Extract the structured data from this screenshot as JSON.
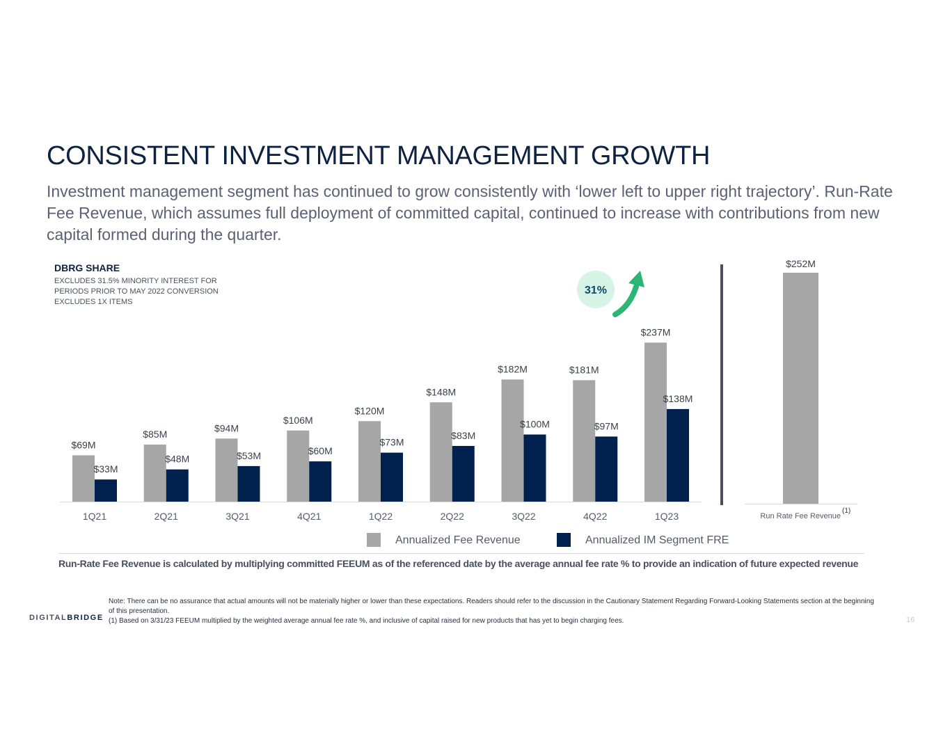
{
  "header": {
    "title": "CONSISTENT INVESTMENT MANAGEMENT GROWTH",
    "subtitle": "Investment management segment has continued to grow consistently with ‘lower left to upper right trajectory’. Run-Rate Fee Revenue, which assumes full deployment of committed capital, continued to increase with contributions from new capital formed during the quarter."
  },
  "share_box": {
    "title": "DBRG SHARE",
    "lines": [
      "EXCLUDES 31.5% MINORITY INTEREST FOR",
      "PERIODS PRIOR TO MAY 2022 CONVERSION",
      "EXCLUDES 1X ITEMS"
    ]
  },
  "chart_data": {
    "type": "bar",
    "categories": [
      "1Q21",
      "2Q21",
      "3Q21",
      "4Q21",
      "1Q22",
      "2Q22",
      "3Q22",
      "4Q22",
      "1Q23"
    ],
    "series": [
      {
        "name": "Annualized Fee Revenue",
        "values": [
          69,
          85,
          94,
          106,
          120,
          148,
          182,
          181,
          237
        ],
        "labels": [
          "$69M",
          "$85M",
          "$94M",
          "$106M",
          "$120M",
          "$148M",
          "$182M",
          "$181M",
          "$237M"
        ]
      },
      {
        "name": "Annualized IM Segment FRE",
        "values": [
          33,
          48,
          53,
          60,
          73,
          83,
          100,
          97,
          138
        ],
        "labels": [
          "$33M",
          "$48M",
          "$53M",
          "$60M",
          "$73M",
          "$83M",
          "$100M",
          "$97M",
          "$138M"
        ]
      }
    ],
    "growth_annotation": "31%",
    "run_rate": {
      "category": "Run Rate Fee Revenue",
      "footnote": "(1)",
      "value": 252,
      "label": "$252M"
    },
    "ylim": [
      0,
      260
    ],
    "units": "$M"
  },
  "colors": {
    "fee_revenue": "#a6a6a6",
    "fre": "#00214d",
    "growth_arrow": "#2bb673",
    "growth_circle": "#d6f3e6",
    "growth_text": "#0d4a6b"
  },
  "definition": "Run-Rate Fee Revenue is calculated by multiplying committed FEEUM as of the referenced date by the average annual fee rate % to provide an indication of future expected revenue",
  "notes": {
    "note": "Note: There can be no assurance that actual amounts will not be materially higher or lower than these expectations.  Readers should refer to the discussion in the Cautionary Statement Regarding Forward-Looking Statements section at the beginning of this presentation.",
    "footnote1": "(1)  Based on 3/31/23 FEEUM multiplied by the weighted average annual fee rate %, and inclusive of capital raised for new products that has yet to begin charging fees."
  },
  "footer": {
    "logo_prefix": "DIGITAL",
    "logo_suffix": "BRIDGE",
    "page_number": "16"
  }
}
